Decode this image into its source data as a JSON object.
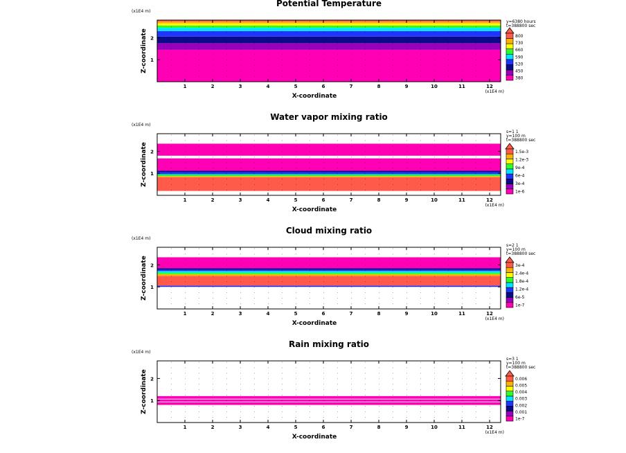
{
  "colors": {
    "magenta": "#ff00b4",
    "purple": "#9900bb",
    "navy": "#0a0a8a",
    "blue": "#1f35ff",
    "cyan": "#00e5ff",
    "teal": "#00c8a0",
    "green": "#2aff2a",
    "yellow": "#ffff00",
    "orange": "#ffb000",
    "salmon": "#ff5a4a",
    "white": "#ffffff"
  },
  "chart_data": [
    {
      "type": "heatmap",
      "title": "Potential Temperature",
      "xlabel": "X-coordinate",
      "ylabel": "Z-coordinate",
      "xunit": "(x1E4 m)",
      "zunit": "(x1E4 m)",
      "xlim": [
        0,
        12.4
      ],
      "zlim": [
        0,
        2.8
      ],
      "xticks": [
        "1",
        "2",
        "3",
        "4",
        "5",
        "6",
        "7",
        "8",
        "9",
        "10",
        "11",
        "12"
      ],
      "zticks": [
        "1",
        "2"
      ],
      "info": [
        "y=6380 hours",
        "t=388800 sec"
      ],
      "colorbar": {
        "labels": [
          "380",
          "450",
          "520",
          "590",
          "660",
          "730",
          "800"
        ],
        "colors": [
          "#ff00b4",
          "#9900bb",
          "#0a0a8a",
          "#1f35ff",
          "#00e5ff",
          "#2aff2a",
          "#ffff00",
          "#ffb000",
          "#ff5a4a"
        ]
      },
      "bands": [
        {
          "z0": 0.0,
          "z1": 1.45,
          "color": "#ff00b4"
        },
        {
          "z0": 1.45,
          "z1": 1.75,
          "color": "#9900bb"
        },
        {
          "z0": 1.75,
          "z1": 2.05,
          "color": "#0a0a8a"
        },
        {
          "z0": 2.05,
          "z1": 2.3,
          "color": "#1f35ff"
        },
        {
          "z0": 2.3,
          "z1": 2.45,
          "color": "#00e5ff"
        },
        {
          "z0": 2.45,
          "z1": 2.55,
          "color": "#2aff2a"
        },
        {
          "z0": 2.55,
          "z1": 2.65,
          "color": "#ffff00"
        },
        {
          "z0": 2.65,
          "z1": 2.73,
          "color": "#ffb000"
        },
        {
          "z0": 2.73,
          "z1": 2.8,
          "color": "#ff5a4a"
        }
      ]
    },
    {
      "type": "heatmap",
      "title": "Water vapor mixing ratio",
      "xlabel": "X-coordinate",
      "ylabel": "Z-coordinate",
      "xunit": "(x1E4 m)",
      "zunit": "(x1E4 m)",
      "xlim": [
        0,
        12.4
      ],
      "zlim": [
        0,
        2.8
      ],
      "xticks": [
        "1",
        "2",
        "3",
        "4",
        "5",
        "6",
        "7",
        "8",
        "9",
        "10",
        "11",
        "12"
      ],
      "zticks": [
        "1",
        "2"
      ],
      "info": [
        "s=1 1",
        "y=100 m",
        "t=388800 sec"
      ],
      "colorbar": {
        "labels": [
          "1e-6",
          "3e-4",
          "6e-4",
          "9e-4",
          "1.2e-3",
          "1.5e-3"
        ],
        "colors": [
          "#ff00b4",
          "#9900bb",
          "#0a0a8a",
          "#1f35ff",
          "#00e5ff",
          "#2aff2a",
          "#ffff00",
          "#ffb000",
          "#ff5a4a"
        ]
      },
      "bands": [
        {
          "z0": 0.0,
          "z1": 0.2,
          "color": "#ffffff"
        },
        {
          "z0": 0.2,
          "z1": 0.82,
          "color": "#ff5a4a"
        },
        {
          "z0": 0.82,
          "z1": 0.87,
          "color": "#ffb000"
        },
        {
          "z0": 0.87,
          "z1": 0.92,
          "color": "#2aff2a"
        },
        {
          "z0": 0.92,
          "z1": 0.97,
          "color": "#00c8a0"
        },
        {
          "z0": 0.97,
          "z1": 1.05,
          "color": "#1f35ff"
        },
        {
          "z0": 1.05,
          "z1": 1.12,
          "color": "#0a0a8a"
        },
        {
          "z0": 1.12,
          "z1": 1.68,
          "color": "#ff00b4"
        },
        {
          "z0": 1.68,
          "z1": 1.8,
          "color": "#ffffff"
        },
        {
          "z0": 1.8,
          "z1": 2.35,
          "color": "#ff00b4"
        },
        {
          "z0": 2.35,
          "z1": 2.8,
          "color": "#ffffff"
        }
      ]
    },
    {
      "type": "heatmap",
      "title": "Cloud mixing ratio",
      "xlabel": "X-coordinate",
      "ylabel": "Z-coordinate",
      "xunit": "(x1E4 m)",
      "zunit": "(x1E4 m)",
      "xlim": [
        0,
        12.4
      ],
      "zlim": [
        0,
        2.8
      ],
      "xticks": [
        "1",
        "2",
        "3",
        "4",
        "5",
        "6",
        "7",
        "8",
        "9",
        "10",
        "11",
        "12"
      ],
      "zticks": [
        "1",
        "2"
      ],
      "info": [
        "s=2 1",
        "y=100 m",
        "t=388800 sec"
      ],
      "colorbar": {
        "labels": [
          "1e-7",
          "6e-5",
          "1.2e-4",
          "1.8e-4",
          "2.4e-4",
          "3e-4"
        ],
        "colors": [
          "#ff00b4",
          "#9900bb",
          "#0a0a8a",
          "#1f35ff",
          "#00e5ff",
          "#2aff2a",
          "#ffff00",
          "#ffb000",
          "#ff5a4a"
        ]
      },
      "bands": [
        {
          "z0": 0.0,
          "z1": 1.0,
          "color": "#ffffff"
        },
        {
          "z0": 1.0,
          "z1": 1.06,
          "color": "#1f35ff"
        },
        {
          "z0": 1.06,
          "z1": 1.5,
          "color": "#ff5a4a"
        },
        {
          "z0": 1.5,
          "z1": 1.58,
          "color": "#ffb000"
        },
        {
          "z0": 1.58,
          "z1": 1.65,
          "color": "#2aff2a"
        },
        {
          "z0": 1.65,
          "z1": 1.72,
          "color": "#00e5ff"
        },
        {
          "z0": 1.72,
          "z1": 1.78,
          "color": "#1f35ff"
        },
        {
          "z0": 1.78,
          "z1": 1.85,
          "color": "#0a0a8a"
        },
        {
          "z0": 1.85,
          "z1": 2.35,
          "color": "#ff00b4"
        },
        {
          "z0": 2.35,
          "z1": 2.8,
          "color": "#ffffff"
        }
      ]
    },
    {
      "type": "heatmap",
      "title": "Rain mixing ratio",
      "xlabel": "X-coordinate",
      "ylabel": "Z-coordinate",
      "xunit": "(x1E4 m)",
      "zunit": "(x1E4 m)",
      "xlim": [
        0,
        12.4
      ],
      "zlim": [
        0,
        2.8
      ],
      "xticks": [
        "1",
        "2",
        "3",
        "4",
        "5",
        "6",
        "7",
        "8",
        "9",
        "10",
        "11",
        "12"
      ],
      "zticks": [
        "1",
        "2"
      ],
      "info": [
        "s=3 1",
        "y=100 m",
        "t=388800 sec"
      ],
      "colorbar": {
        "labels": [
          "1e-7",
          "0.001",
          "0.002",
          "0.003",
          "0.004",
          "0.005",
          "0.006"
        ],
        "colors": [
          "#ff00b4",
          "#9900bb",
          "#0a0a8a",
          "#1f35ff",
          "#00e5ff",
          "#2aff2a",
          "#ffff00",
          "#ffb000",
          "#ff5a4a"
        ]
      },
      "bands": [
        {
          "z0": 0.8,
          "z1": 0.92,
          "color": "#ff00b4"
        },
        {
          "z0": 0.95,
          "z1": 1.05,
          "color": "#ff00b4"
        },
        {
          "z0": 1.08,
          "z1": 1.2,
          "color": "#ff00b4"
        }
      ]
    }
  ]
}
